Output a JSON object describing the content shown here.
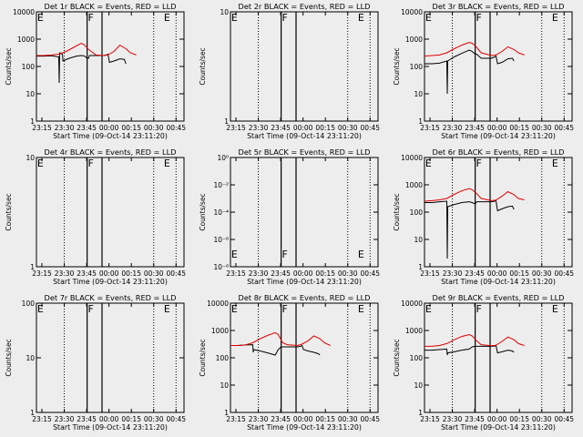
{
  "x_axis": {
    "label": "Start Time (09-Oct-14 23:11:20)",
    "ticks": [
      "23:15",
      "23:30",
      "23:45",
      "00:00",
      "00:15",
      "00:30",
      "00:45"
    ]
  },
  "y_label": "Counts/sec",
  "chart_data": [
    {
      "type": "line",
      "title": "Det 1r BLACK = Events, RED = LLD",
      "ylim_log10": [
        0,
        4
      ],
      "yticks": [
        "1",
        "10",
        "100",
        "1000",
        "10000"
      ],
      "flags": [
        "E",
        "F",
        "E"
      ],
      "series": [
        {
          "color": "#000000",
          "values": [
            [
              0,
              2.38
            ],
            [
              5,
              2.38
            ],
            [
              10,
              2.39
            ],
            [
              15,
              2.35
            ],
            [
              15.3,
              1.4
            ],
            [
              15.6,
              2.5
            ],
            [
              17.5,
              2.44
            ],
            [
              17.8,
              2.2
            ],
            [
              22,
              2.3
            ],
            [
              27,
              2.38
            ],
            [
              30,
              2.4
            ],
            [
              32,
              2.39
            ],
            [
              34,
              2.3
            ],
            [
              35,
              2.3
            ],
            [
              35.5,
              2.4
            ],
            [
              45,
              2.4
            ],
            [
              47,
              2.42
            ],
            [
              48,
              2.45
            ],
            [
              49,
              2.15
            ],
            [
              52,
              2.2
            ],
            [
              56,
              2.28
            ],
            [
              59,
              2.26
            ],
            [
              60,
              2.1
            ]
          ]
        },
        {
          "color": "#e00000",
          "values": [
            [
              0,
              2.4
            ],
            [
              5,
              2.4
            ],
            [
              10,
              2.42
            ],
            [
              15,
              2.45
            ],
            [
              20,
              2.55
            ],
            [
              25,
              2.7
            ],
            [
              30,
              2.85
            ],
            [
              32,
              2.8
            ],
            [
              35,
              2.62
            ],
            [
              40,
              2.42
            ],
            [
              45,
              2.4
            ],
            [
              48,
              2.42
            ],
            [
              52,
              2.55
            ],
            [
              56,
              2.78
            ],
            [
              60,
              2.65
            ],
            [
              63,
              2.5
            ],
            [
              67,
              2.42
            ]
          ]
        }
      ]
    },
    {
      "type": "line",
      "title": "Det 2r BLACK = Events, RED = LLD",
      "ylim_log10": [
        0,
        1
      ],
      "yticks": [
        "1",
        "10"
      ],
      "flags": [
        "E",
        "F",
        "E"
      ],
      "series": []
    },
    {
      "type": "line",
      "title": "Det 3r BLACK = Events, RED = LLD",
      "ylim_log10": [
        0,
        4
      ],
      "yticks": [
        "1",
        "10",
        "100",
        "1000",
        "10000"
      ],
      "flags": [
        "E",
        "F",
        "E"
      ],
      "series": [
        {
          "color": "#000000",
          "values": [
            [
              0,
              2.1
            ],
            [
              5,
              2.1
            ],
            [
              10,
              2.12
            ],
            [
              15,
              2.2
            ],
            [
              15.3,
              1.0
            ],
            [
              15.6,
              2.2
            ],
            [
              20,
              2.35
            ],
            [
              25,
              2.48
            ],
            [
              30,
              2.6
            ],
            [
              32,
              2.55
            ],
            [
              34,
              2.45
            ],
            [
              35,
              2.45
            ],
            [
              38,
              2.3
            ],
            [
              45,
              2.3
            ],
            [
              47,
              2.35
            ],
            [
              48,
              2.38
            ],
            [
              49,
              2.1
            ],
            [
              52,
              2.15
            ],
            [
              56,
              2.28
            ],
            [
              59,
              2.3
            ],
            [
              60,
              2.2
            ]
          ]
        },
        {
          "color": "#e00000",
          "values": [
            [
              0,
              2.38
            ],
            [
              5,
              2.4
            ],
            [
              10,
              2.42
            ],
            [
              15,
              2.5
            ],
            [
              20,
              2.65
            ],
            [
              25,
              2.78
            ],
            [
              30,
              2.88
            ],
            [
              32,
              2.85
            ],
            [
              35,
              2.7
            ],
            [
              38,
              2.5
            ],
            [
              45,
              2.4
            ],
            [
              48,
              2.42
            ],
            [
              52,
              2.55
            ],
            [
              56,
              2.72
            ],
            [
              60,
              2.62
            ],
            [
              63,
              2.5
            ],
            [
              67,
              2.42
            ]
          ]
        }
      ]
    },
    {
      "type": "line",
      "title": "Det 4r BLACK = Events, RED = LLD",
      "ylim_log10": [
        0,
        1
      ],
      "yticks": [
        "1",
        "10"
      ],
      "flags": [
        "E",
        "F",
        "E"
      ],
      "series": []
    },
    {
      "type": "line",
      "title": "Det 5r BLACK = Events, RED = LLD",
      "ylim_log10": [
        -8,
        0
      ],
      "yticks": [
        "10⁻⁸",
        "10⁻⁶",
        "10⁻⁴",
        "10⁻²",
        "10⁰"
      ],
      "flags": [
        "E",
        "F",
        "E"
      ],
      "series": []
    },
    {
      "type": "line",
      "title": "Det 6r BLACK = Events, RED = LLD",
      "ylim_log10": [
        0,
        4
      ],
      "yticks": [
        "1",
        "10",
        "100",
        "1000",
        "10000"
      ],
      "flags": [
        "E",
        "F",
        "E"
      ],
      "series": [
        {
          "color": "#000000",
          "values": [
            [
              0,
              2.35
            ],
            [
              5,
              2.35
            ],
            [
              10,
              2.38
            ],
            [
              15,
              2.4
            ],
            [
              15.3,
              0.3
            ],
            [
              15.6,
              2.2
            ],
            [
              20,
              2.28
            ],
            [
              25,
              2.35
            ],
            [
              30,
              2.38
            ],
            [
              32,
              2.35
            ],
            [
              34,
              2.3
            ],
            [
              35,
              2.38
            ],
            [
              45,
              2.38
            ],
            [
              47,
              2.4
            ],
            [
              48,
              2.42
            ],
            [
              49,
              2.05
            ],
            [
              52,
              2.12
            ],
            [
              56,
              2.2
            ],
            [
              59,
              2.22
            ],
            [
              60,
              2.1
            ]
          ]
        },
        {
          "color": "#e00000",
          "values": [
            [
              0,
              2.4
            ],
            [
              5,
              2.42
            ],
            [
              10,
              2.45
            ],
            [
              15,
              2.5
            ],
            [
              20,
              2.65
            ],
            [
              25,
              2.78
            ],
            [
              30,
              2.86
            ],
            [
              32,
              2.82
            ],
            [
              35,
              2.68
            ],
            [
              38,
              2.5
            ],
            [
              45,
              2.42
            ],
            [
              48,
              2.44
            ],
            [
              52,
              2.58
            ],
            [
              56,
              2.75
            ],
            [
              60,
              2.64
            ],
            [
              63,
              2.5
            ],
            [
              67,
              2.45
            ]
          ]
        }
      ]
    },
    {
      "type": "line",
      "title": "Det 7r BLACK = Events, RED = LLD",
      "ylim_log10": [
        0,
        2
      ],
      "yticks": [
        "1",
        "10",
        "100"
      ],
      "flags": [
        "E",
        "F",
        "E"
      ],
      "series": []
    },
    {
      "type": "line",
      "title": "Det 8r BLACK = Events, RED = LLD",
      "ylim_log10": [
        0,
        4
      ],
      "yticks": [
        "1",
        "10",
        "100",
        "1000",
        "10000"
      ],
      "flags": [
        "E",
        "F",
        "E"
      ],
      "series": [
        {
          "color": "#000000",
          "values": [
            [
              0,
              2.45
            ],
            [
              5,
              2.45
            ],
            [
              10,
              2.47
            ],
            [
              15,
              2.48
            ],
            [
              15.3,
              2.2
            ],
            [
              15.6,
              2.3
            ],
            [
              20,
              2.25
            ],
            [
              25,
              2.18
            ],
            [
              30,
              2.1
            ],
            [
              32,
              2.3
            ],
            [
              34,
              2.4
            ],
            [
              45,
              2.4
            ],
            [
              47,
              2.42
            ],
            [
              48,
              2.45
            ],
            [
              49,
              2.3
            ],
            [
              52,
              2.25
            ],
            [
              56,
              2.2
            ],
            [
              59,
              2.15
            ],
            [
              60,
              2.1
            ]
          ]
        },
        {
          "color": "#e00000",
          "values": [
            [
              0,
              2.45
            ],
            [
              5,
              2.45
            ],
            [
              10,
              2.47
            ],
            [
              15,
              2.55
            ],
            [
              20,
              2.7
            ],
            [
              25,
              2.82
            ],
            [
              30,
              2.92
            ],
            [
              32,
              2.85
            ],
            [
              35,
              2.55
            ],
            [
              38,
              2.48
            ],
            [
              45,
              2.45
            ],
            [
              48,
              2.5
            ],
            [
              52,
              2.62
            ],
            [
              56,
              2.8
            ],
            [
              60,
              2.7
            ],
            [
              63,
              2.55
            ],
            [
              67,
              2.45
            ]
          ]
        }
      ]
    },
    {
      "type": "line",
      "title": "Det 9r BLACK = Events, RED = LLD",
      "ylim_log10": [
        0,
        4
      ],
      "yticks": [
        "1",
        "10",
        "100",
        "1000",
        "10000"
      ],
      "flags": [
        "E",
        "F",
        "E"
      ],
      "series": [
        {
          "color": "#000000",
          "values": [
            [
              0,
              2.28
            ],
            [
              5,
              2.28
            ],
            [
              10,
              2.3
            ],
            [
              15,
              2.32
            ],
            [
              15.3,
              2.1
            ],
            [
              15.6,
              2.18
            ],
            [
              20,
              2.22
            ],
            [
              25,
              2.28
            ],
            [
              30,
              2.32
            ],
            [
              32,
              2.4
            ],
            [
              34,
              2.42
            ],
            [
              45,
              2.42
            ],
            [
              47,
              2.43
            ],
            [
              48,
              2.45
            ],
            [
              49,
              2.18
            ],
            [
              52,
              2.22
            ],
            [
              56,
              2.28
            ],
            [
              59,
              2.25
            ],
            [
              60,
              2.2
            ]
          ]
        },
        {
          "color": "#e00000",
          "values": [
            [
              0,
              2.42
            ],
            [
              5,
              2.42
            ],
            [
              10,
              2.45
            ],
            [
              15,
              2.52
            ],
            [
              20,
              2.66
            ],
            [
              25,
              2.78
            ],
            [
              30,
              2.85
            ],
            [
              32,
              2.8
            ],
            [
              35,
              2.62
            ],
            [
              38,
              2.48
            ],
            [
              45,
              2.44
            ],
            [
              48,
              2.46
            ],
            [
              52,
              2.6
            ],
            [
              56,
              2.76
            ],
            [
              60,
              2.66
            ],
            [
              63,
              2.52
            ],
            [
              67,
              2.45
            ]
          ]
        }
      ]
    }
  ]
}
